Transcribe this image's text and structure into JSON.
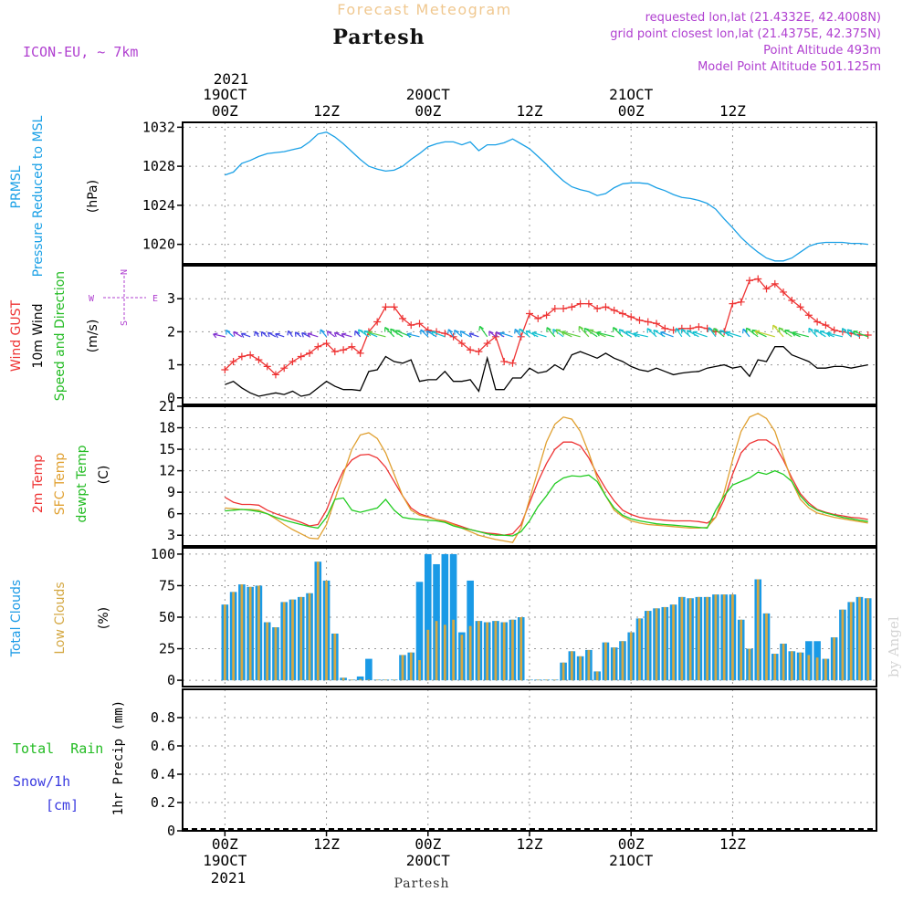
{
  "header": {
    "app_title": "Forecast Meteogram",
    "location": "Partesh",
    "model": "ICON-EU, ~ 7km",
    "requested": "requested lon,lat (21.4332E, 42.4008N)",
    "grid_point": "grid point closest lon,lat (21.4375E, 42.375N)",
    "point_altitude": "Point Altitude 493m",
    "model_altitude": "Model Point Altitude 501.125m",
    "footer_location": "Partesh",
    "watermark": "by Angel"
  },
  "time_axis": {
    "top_year": "2021",
    "bottom_year": "2021",
    "date_labels": [
      "19OCT",
      "20OCT",
      "21OCT"
    ],
    "hour_labels": [
      "00Z",
      "12Z",
      "00Z",
      "12Z",
      "00Z",
      "12Z"
    ],
    "bottom_hour_labels": [
      "00Z",
      "12Z",
      "00Z",
      "12Z",
      "00Z",
      "12Z"
    ],
    "bottom_date_labels": [
      "19OCT",
      "20OCT",
      "21OCT"
    ]
  },
  "panel_labels": {
    "pressure": {
      "line1": "PRMSL",
      "line2": "Pressure Reduced to MSL",
      "unit": "(hPa)"
    },
    "wind": {
      "gust": "Wind GUST",
      "wind10": "10m Wind",
      "speed_dir": "Speed and Direction",
      "unit": "(m/s)",
      "compass_ns": "N",
      "compass_s": "S",
      "compass_w": "W",
      "compass_e": "E"
    },
    "temp": {
      "t2m": "2m Temp",
      "sfc": "SFC Temp",
      "dewpt": "dewpt Temp",
      "unit": "(C)"
    },
    "clouds": {
      "total": "Total Clouds",
      "low": "Low Clouds",
      "unit": "(%)"
    },
    "precip": {
      "rain": "Total  Rain",
      "snow": "Snow/1h",
      "cm": "[cm]",
      "axis": "1hr Precip (mm)"
    }
  },
  "colors": {
    "pressure": "#1aa0e6",
    "gust": "#ee3333",
    "wind10": "#000000",
    "t2m": "#ee3333",
    "sfc": "#e0a030",
    "dewpt": "#22cc22",
    "total_clouds": "#1a9ae6",
    "low_clouds": "#d4a843",
    "label_purple": "#b040d0",
    "label_blue": "#3a3ae0",
    "label_green": "#22bb22"
  },
  "chart_data": [
    {
      "type": "line",
      "name": "pressure",
      "ylabel": "PRMSL Pressure Reduced to MSL (hPa)",
      "ylim": [
        1018,
        1032.5
      ],
      "yticks": [
        1020,
        1024,
        1028,
        1032
      ],
      "x_hours": [
        0,
        1,
        2,
        3,
        4,
        5,
        6,
        7,
        8,
        9,
        10,
        11,
        12,
        13,
        14,
        15,
        16,
        17,
        18,
        19,
        20,
        21,
        22,
        23,
        24,
        25,
        26,
        27,
        28,
        29,
        30,
        31,
        32,
        33,
        34,
        35,
        36,
        37,
        38,
        39,
        40,
        41,
        42,
        43,
        44,
        45,
        46,
        47,
        48,
        49,
        50,
        51,
        52,
        53,
        54,
        55,
        56,
        57,
        58,
        59,
        60,
        61,
        62,
        63,
        64,
        65,
        66,
        67,
        68,
        69,
        70,
        71,
        72,
        73,
        74,
        75,
        76
      ],
      "series": [
        {
          "name": "PRMSL",
          "values": [
            1027.1,
            1027.4,
            1028.3,
            1028.6,
            1029.0,
            1029.3,
            1029.4,
            1029.5,
            1029.7,
            1029.9,
            1030.5,
            1031.3,
            1031.5,
            1031.0,
            1030.3,
            1029.5,
            1028.7,
            1028.0,
            1027.7,
            1027.5,
            1027.6,
            1028.0,
            1028.7,
            1029.3,
            1030.0,
            1030.3,
            1030.5,
            1030.5,
            1030.2,
            1030.5,
            1029.6,
            1030.2,
            1030.2,
            1030.4,
            1030.8,
            1030.3,
            1029.8,
            1029.0,
            1028.2,
            1027.3,
            1026.5,
            1025.9,
            1025.6,
            1025.4,
            1025.0,
            1025.2,
            1025.8,
            1026.2,
            1026.3,
            1026.3,
            1026.2,
            1025.8,
            1025.5,
            1025.1,
            1024.8,
            1024.7,
            1024.5,
            1024.2,
            1023.6,
            1022.6,
            1021.7,
            1020.7,
            1019.9,
            1019.2,
            1018.6,
            1018.3,
            1018.3,
            1018.6,
            1019.2,
            1019.8,
            1020.1,
            1020.2,
            1020.2,
            1020.2,
            1020.1,
            1020.1,
            1020.0
          ]
        }
      ]
    },
    {
      "type": "line",
      "name": "wind",
      "ylabel": "Wind GUST / 10m Wind Speed and Direction (m/s)",
      "ylim": [
        -0.2,
        4.0
      ],
      "yticks": [
        0,
        1,
        2,
        3
      ],
      "x_hours": [
        0,
        1,
        2,
        3,
        4,
        5,
        6,
        7,
        8,
        9,
        10,
        11,
        12,
        13,
        14,
        15,
        16,
        17,
        18,
        19,
        20,
        21,
        22,
        23,
        24,
        25,
        26,
        27,
        28,
        29,
        30,
        31,
        32,
        33,
        34,
        35,
        36,
        37,
        38,
        39,
        40,
        41,
        42,
        43,
        44,
        45,
        46,
        47,
        48,
        49,
        50,
        51,
        52,
        53,
        54,
        55,
        56,
        57,
        58,
        59,
        60,
        61,
        62,
        63,
        64,
        65,
        66,
        67,
        68,
        69,
        70,
        71,
        72,
        73,
        74,
        75,
        76
      ],
      "series": [
        {
          "name": "Wind GUST",
          "values": [
            0.85,
            1.1,
            1.25,
            1.3,
            1.15,
            0.95,
            0.7,
            0.9,
            1.1,
            1.25,
            1.35,
            1.55,
            1.65,
            1.4,
            1.45,
            1.55,
            1.35,
            2.0,
            2.3,
            2.75,
            2.75,
            2.4,
            2.2,
            2.25,
            2.05,
            2.0,
            1.95,
            1.85,
            1.65,
            1.45,
            1.4,
            1.65,
            1.85,
            1.1,
            1.05,
            1.85,
            2.55,
            2.4,
            2.5,
            2.7,
            2.7,
            2.75,
            2.85,
            2.85,
            2.7,
            2.75,
            2.65,
            2.55,
            2.45,
            2.35,
            2.3,
            2.25,
            2.1,
            2.05,
            2.1,
            2.1,
            2.15,
            2.1,
            2.0,
            2.0,
            2.85,
            2.9,
            3.55,
            3.6,
            3.3,
            3.45,
            3.2,
            2.95,
            2.75,
            2.5,
            2.3,
            2.2,
            2.05,
            2.0,
            1.95,
            1.9,
            1.9
          ]
        },
        {
          "name": "10m Wind",
          "values": [
            0.4,
            0.5,
            0.3,
            0.15,
            0.05,
            0.1,
            0.15,
            0.1,
            0.2,
            0.05,
            0.1,
            0.3,
            0.5,
            0.35,
            0.25,
            0.25,
            0.22,
            0.8,
            0.85,
            1.25,
            1.1,
            1.05,
            1.15,
            0.5,
            0.55,
            0.55,
            0.8,
            0.5,
            0.5,
            0.55,
            0.2,
            1.2,
            0.25,
            0.25,
            0.6,
            0.6,
            0.9,
            0.75,
            0.8,
            1.0,
            0.85,
            1.3,
            1.4,
            1.3,
            1.2,
            1.35,
            1.2,
            1.1,
            0.95,
            0.85,
            0.8,
            0.9,
            0.8,
            0.7,
            0.75,
            0.78,
            0.8,
            0.9,
            0.95,
            1.0,
            0.9,
            0.95,
            0.65,
            1.15,
            1.1,
            1.55,
            1.55,
            1.3,
            1.2,
            1.1,
            0.9,
            0.9,
            0.95,
            0.95,
            0.9,
            0.95,
            1.0
          ]
        }
      ],
      "wind_arrows": {
        "level": 1.85,
        "every_hours": 1,
        "note": "direction arrows along ~1.85 m/s"
      }
    },
    {
      "type": "line",
      "name": "temperature",
      "ylabel": "2m Temp / SFC Temp / dewpt Temp (C)",
      "ylim": [
        1.5,
        21
      ],
      "yticks": [
        3,
        6,
        9,
        12,
        15,
        18,
        21
      ],
      "x_hours": [
        0,
        1,
        2,
        3,
        4,
        5,
        6,
        7,
        8,
        9,
        10,
        11,
        12,
        13,
        14,
        15,
        16,
        17,
        18,
        19,
        20,
        21,
        22,
        23,
        24,
        25,
        26,
        27,
        28,
        29,
        30,
        31,
        32,
        33,
        34,
        35,
        36,
        37,
        38,
        39,
        40,
        41,
        42,
        43,
        44,
        45,
        46,
        47,
        48,
        49,
        50,
        51,
        52,
        53,
        54,
        55,
        56,
        57,
        58,
        59,
        60,
        61,
        62,
        63,
        64,
        65,
        66,
        67,
        68,
        69,
        70,
        71,
        72,
        73,
        74,
        75,
        76
      ],
      "series": [
        {
          "name": "2m Temp",
          "values": [
            8.3,
            7.6,
            7.3,
            7.3,
            7.2,
            6.5,
            6.0,
            5.6,
            5.2,
            4.8,
            4.3,
            4.5,
            6.5,
            9.5,
            12.0,
            13.5,
            14.2,
            14.3,
            13.8,
            12.5,
            10.5,
            8.5,
            6.8,
            6.0,
            5.6,
            5.2,
            5.0,
            4.6,
            4.2,
            3.8,
            3.5,
            3.3,
            3.2,
            3.0,
            3.2,
            4.5,
            7.5,
            10.5,
            13.0,
            15.0,
            16.0,
            16.0,
            15.5,
            13.8,
            11.5,
            9.5,
            7.8,
            6.5,
            5.9,
            5.5,
            5.3,
            5.2,
            5.1,
            5.0,
            5.0,
            5.0,
            4.9,
            4.7,
            5.5,
            8.0,
            11.5,
            14.5,
            15.8,
            16.3,
            16.3,
            15.5,
            13.5,
            11.0,
            8.8,
            7.5,
            6.6,
            6.2,
            5.9,
            5.7,
            5.5,
            5.4,
            5.2
          ]
        },
        {
          "name": "SFC Temp",
          "values": [
            6.8,
            6.7,
            6.6,
            6.6,
            6.5,
            6.0,
            5.3,
            4.5,
            3.8,
            3.2,
            2.6,
            2.5,
            4.5,
            8.0,
            11.5,
            15.0,
            17.0,
            17.3,
            16.5,
            14.5,
            11.5,
            8.5,
            6.5,
            5.8,
            5.5,
            5.2,
            4.9,
            4.5,
            4.0,
            3.5,
            3.0,
            2.7,
            2.4,
            2.2,
            2.0,
            4.0,
            8.0,
            12.0,
            16.0,
            18.5,
            19.5,
            19.2,
            17.5,
            14.5,
            11.0,
            8.5,
            6.5,
            5.6,
            5.0,
            4.7,
            4.5,
            4.4,
            4.3,
            4.2,
            4.1,
            4.0,
            4.0,
            4.1,
            5.5,
            9.0,
            13.5,
            17.5,
            19.5,
            20.0,
            19.3,
            17.5,
            14.0,
            10.5,
            8.0,
            6.8,
            6.1,
            5.8,
            5.5,
            5.3,
            5.1,
            4.9,
            4.7
          ]
        },
        {
          "name": "dewpt Temp",
          "values": [
            6.4,
            6.5,
            6.6,
            6.5,
            6.3,
            6.0,
            5.5,
            5.1,
            4.8,
            4.5,
            4.2,
            4.0,
            5.5,
            8.0,
            8.2,
            6.5,
            6.2,
            6.5,
            6.8,
            8.0,
            6.5,
            5.5,
            5.3,
            5.2,
            5.1,
            5.0,
            4.8,
            4.3,
            4.0,
            3.8,
            3.5,
            3.2,
            3.0,
            3.0,
            2.9,
            3.5,
            5.0,
            7.0,
            8.5,
            10.2,
            11.0,
            11.3,
            11.2,
            11.4,
            10.5,
            8.5,
            6.8,
            5.8,
            5.3,
            5.0,
            4.8,
            4.6,
            4.5,
            4.4,
            4.3,
            4.2,
            4.1,
            4.0,
            6.5,
            8.5,
            10.0,
            10.5,
            11.0,
            11.8,
            11.5,
            12.0,
            11.5,
            10.5,
            8.5,
            7.2,
            6.5,
            6.1,
            5.8,
            5.5,
            5.3,
            5.1,
            4.9
          ]
        }
      ]
    },
    {
      "type": "bar",
      "name": "clouds",
      "ylabel": "Total Clouds / Low Clouds (%)",
      "ylim": [
        -5,
        105
      ],
      "yticks": [
        0,
        25,
        50,
        75,
        100
      ],
      "x_hours": [
        0,
        1,
        2,
        3,
        4,
        5,
        6,
        7,
        8,
        9,
        10,
        11,
        12,
        13,
        14,
        15,
        16,
        17,
        18,
        19,
        20,
        21,
        22,
        23,
        24,
        25,
        26,
        27,
        28,
        29,
        30,
        31,
        32,
        33,
        34,
        35,
        36,
        37,
        38,
        39,
        40,
        41,
        42,
        43,
        44,
        45,
        46,
        47,
        48,
        49,
        50,
        51,
        52,
        53,
        54,
        55,
        56,
        57,
        58,
        59,
        60,
        61,
        62,
        63,
        64,
        65,
        66,
        67,
        68,
        69,
        70,
        71,
        72,
        73,
        74,
        75,
        76
      ],
      "series": [
        {
          "name": "Total Clouds",
          "values": [
            60,
            70,
            76,
            74,
            75,
            46,
            42,
            62,
            64,
            66,
            69,
            94,
            79,
            37,
            2,
            0,
            3,
            17,
            0,
            0,
            0,
            20,
            22,
            78,
            100,
            92,
            100,
            100,
            38,
            79,
            47,
            46,
            47,
            46,
            48,
            50,
            0,
            0,
            0,
            0,
            14,
            23,
            19,
            24,
            7,
            30,
            26,
            31,
            38,
            49,
            55,
            57,
            58,
            60,
            66,
            65,
            66,
            66,
            68,
            68,
            68,
            48,
            25,
            80,
            53,
            21,
            29,
            23,
            22,
            31,
            31,
            17,
            34,
            56,
            62,
            66,
            65
          ]
        },
        {
          "name": "Low Clouds",
          "values": [
            60,
            70,
            76,
            74,
            75,
            46,
            42,
            62,
            64,
            66,
            69,
            94,
            79,
            37,
            2,
            0,
            1,
            0,
            0,
            0,
            0,
            20,
            22,
            16,
            40,
            47,
            44,
            48,
            36,
            43,
            47,
            46,
            47,
            46,
            48,
            50,
            0,
            0,
            0,
            0,
            14,
            23,
            19,
            24,
            7,
            30,
            26,
            31,
            38,
            49,
            55,
            57,
            58,
            60,
            66,
            65,
            66,
            66,
            68,
            68,
            68,
            48,
            25,
            80,
            53,
            21,
            29,
            23,
            22,
            20,
            18,
            17,
            34,
            56,
            62,
            66,
            65
          ]
        }
      ]
    },
    {
      "type": "bar",
      "name": "precip",
      "ylabel": "1hr Precip (mm)",
      "ylim": [
        0,
        1.0
      ],
      "yticks": [
        0,
        0.2,
        0.4,
        0.6,
        0.8
      ],
      "series": [
        {
          "name": "Total Rain",
          "values": []
        },
        {
          "name": "Snow/1h",
          "values": []
        }
      ]
    }
  ]
}
